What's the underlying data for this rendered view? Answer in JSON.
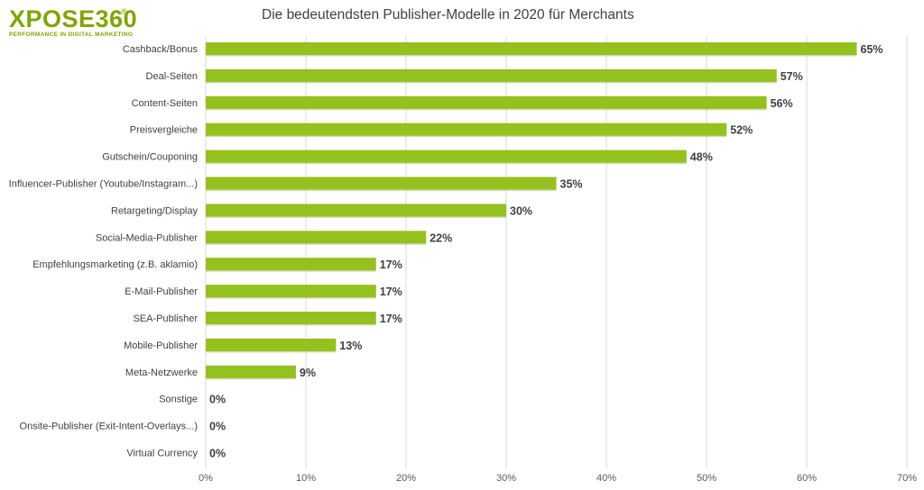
{
  "logo": {
    "text": "XPOSE360",
    "reg": "®",
    "tagline": "PERFORMANCE IN DIGITAL MARKETING"
  },
  "colors": {
    "bar": "#95c11f",
    "brand": "#7fa600",
    "grid": "#d9d9d9",
    "text": "#404040"
  },
  "chart_data": {
    "type": "bar",
    "orientation": "horizontal",
    "title": "Die bedeutendsten Publisher-Modelle in 2020 für Merchants",
    "categories": [
      "Cashback/Bonus",
      "Deal-Seiten",
      "Content-Seiten",
      "Preisvergleiche",
      "Gutschein/Couponing",
      "Influencer-Publisher (Youtube/Instagram...)",
      "Retargeting/Display",
      "Social-Media-Publisher",
      "Empfehlungsmarketing (z.B. aklamio)",
      "E-Mail-Publisher",
      "SEA-Publisher",
      "Mobile-Publisher",
      "Meta-Netzwerke",
      "Sonstige",
      "Onsite-Publisher (Exit-Intent-Overlays...)",
      "Virtual Currency"
    ],
    "values": [
      65,
      57,
      56,
      52,
      48,
      35,
      30,
      22,
      17,
      17,
      17,
      13,
      9,
      0,
      0,
      0
    ],
    "value_labels": [
      "65%",
      "57%",
      "56%",
      "52%",
      "48%",
      "35%",
      "30%",
      "22%",
      "17%",
      "17%",
      "17%",
      "13%",
      "9%",
      "0%",
      "0%",
      "0%"
    ],
    "xlim": [
      0,
      70
    ],
    "xticks": [
      0,
      10,
      20,
      30,
      40,
      50,
      60,
      70
    ],
    "xtick_labels": [
      "0%",
      "10%",
      "20%",
      "30%",
      "40%",
      "50%",
      "60%",
      "70%"
    ],
    "grid": true,
    "legend": "none"
  }
}
